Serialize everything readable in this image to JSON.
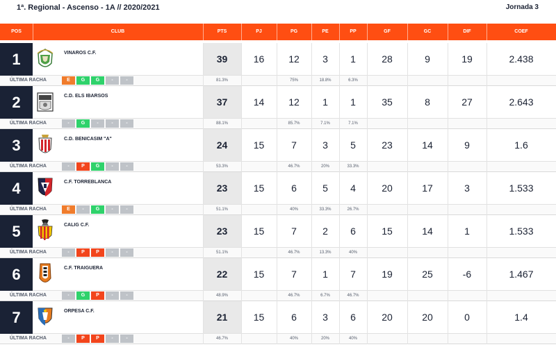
{
  "header": {
    "competition": "1ª. Regional - Ascenso - 1A // 2020/2021",
    "round": "Jornada 3"
  },
  "columns": {
    "pos": "POS",
    "club": "CLUB",
    "pts": "PTS",
    "pj": "PJ",
    "pg": "PG",
    "pe": "PE",
    "pp": "PP",
    "gf": "GF",
    "gc": "GC",
    "dif": "DIF",
    "coef": "COEF"
  },
  "streak_label": "ÚLTIMA RACHA",
  "colors": {
    "accent": "#ff4e12",
    "position_bg": "#1a2235",
    "streak_E": "#f07c2c",
    "streak_G": "#2fd26b",
    "streak_P": "#f2451c",
    "streak_empty": "#bfc3c8"
  },
  "rows": [
    {
      "pos": "1",
      "club": "VINAROS C.F.",
      "crest": "vinaros-crest-icon",
      "pts": "39",
      "pj": "16",
      "pg": "12",
      "pe": "3",
      "pp": "1",
      "gf": "28",
      "gc": "9",
      "dif": "19",
      "coef": "2.438",
      "pct_pts": "81.3%",
      "pct_pg": "75%",
      "pct_pe": "18.8%",
      "pct_pp": "6.3%",
      "streak": [
        "E",
        "G",
        "G",
        "-",
        "-"
      ]
    },
    {
      "pos": "2",
      "club": "C.D. ELS IBARSOS",
      "crest": "ibarsos-crest-icon",
      "pts": "37",
      "pj": "14",
      "pg": "12",
      "pe": "1",
      "pp": "1",
      "gf": "35",
      "gc": "8",
      "dif": "27",
      "coef": "2.643",
      "pct_pts": "88.1%",
      "pct_pg": "85.7%",
      "pct_pe": "7.1%",
      "pct_pp": "7.1%",
      "streak": [
        "-",
        "G",
        "-",
        "-",
        "-"
      ]
    },
    {
      "pos": "3",
      "club": "C.D. BENICASIM \"A\"",
      "crest": "benicasim-crest-icon",
      "pts": "24",
      "pj": "15",
      "pg": "7",
      "pe": "3",
      "pp": "5",
      "gf": "23",
      "gc": "14",
      "dif": "9",
      "coef": "1.6",
      "pct_pts": "53.3%",
      "pct_pg": "46.7%",
      "pct_pe": "20%",
      "pct_pp": "33.3%",
      "streak": [
        "-",
        "P",
        "G",
        "-",
        "-"
      ]
    },
    {
      "pos": "4",
      "club": "C.F. TORREBLANCA",
      "crest": "torreblanca-crest-icon",
      "pts": "23",
      "pj": "15",
      "pg": "6",
      "pe": "5",
      "pp": "4",
      "gf": "20",
      "gc": "17",
      "dif": "3",
      "coef": "1.533",
      "pct_pts": "51.1%",
      "pct_pg": "40%",
      "pct_pe": "33.3%",
      "pct_pp": "26.7%",
      "streak": [
        "E",
        "-",
        "G",
        "-",
        "-"
      ]
    },
    {
      "pos": "5",
      "club": "CALIG C.F.",
      "crest": "calig-crest-icon",
      "pts": "23",
      "pj": "15",
      "pg": "7",
      "pe": "2",
      "pp": "6",
      "gf": "15",
      "gc": "14",
      "dif": "1",
      "coef": "1.533",
      "pct_pts": "51.1%",
      "pct_pg": "46.7%",
      "pct_pe": "13.3%",
      "pct_pp": "40%",
      "streak": [
        "-",
        "P",
        "P",
        "-",
        "-"
      ]
    },
    {
      "pos": "6",
      "club": "C.F. TRAIGUERA",
      "crest": "traiguera-crest-icon",
      "pts": "22",
      "pj": "15",
      "pg": "7",
      "pe": "1",
      "pp": "7",
      "gf": "19",
      "gc": "25",
      "dif": "-6",
      "coef": "1.467",
      "pct_pts": "48.9%",
      "pct_pg": "46.7%",
      "pct_pe": "6.7%",
      "pct_pp": "46.7%",
      "streak": [
        "-",
        "G",
        "P",
        "-",
        "-"
      ]
    },
    {
      "pos": "7",
      "club": "ORPESA C.F.",
      "crest": "orpesa-crest-icon",
      "pts": "21",
      "pj": "15",
      "pg": "6",
      "pe": "3",
      "pp": "6",
      "gf": "20",
      "gc": "20",
      "dif": "0",
      "coef": "1.4",
      "pct_pts": "46.7%",
      "pct_pg": "40%",
      "pct_pe": "20%",
      "pct_pp": "40%",
      "streak": [
        "-",
        "P",
        "P",
        "-",
        "-"
      ]
    }
  ]
}
